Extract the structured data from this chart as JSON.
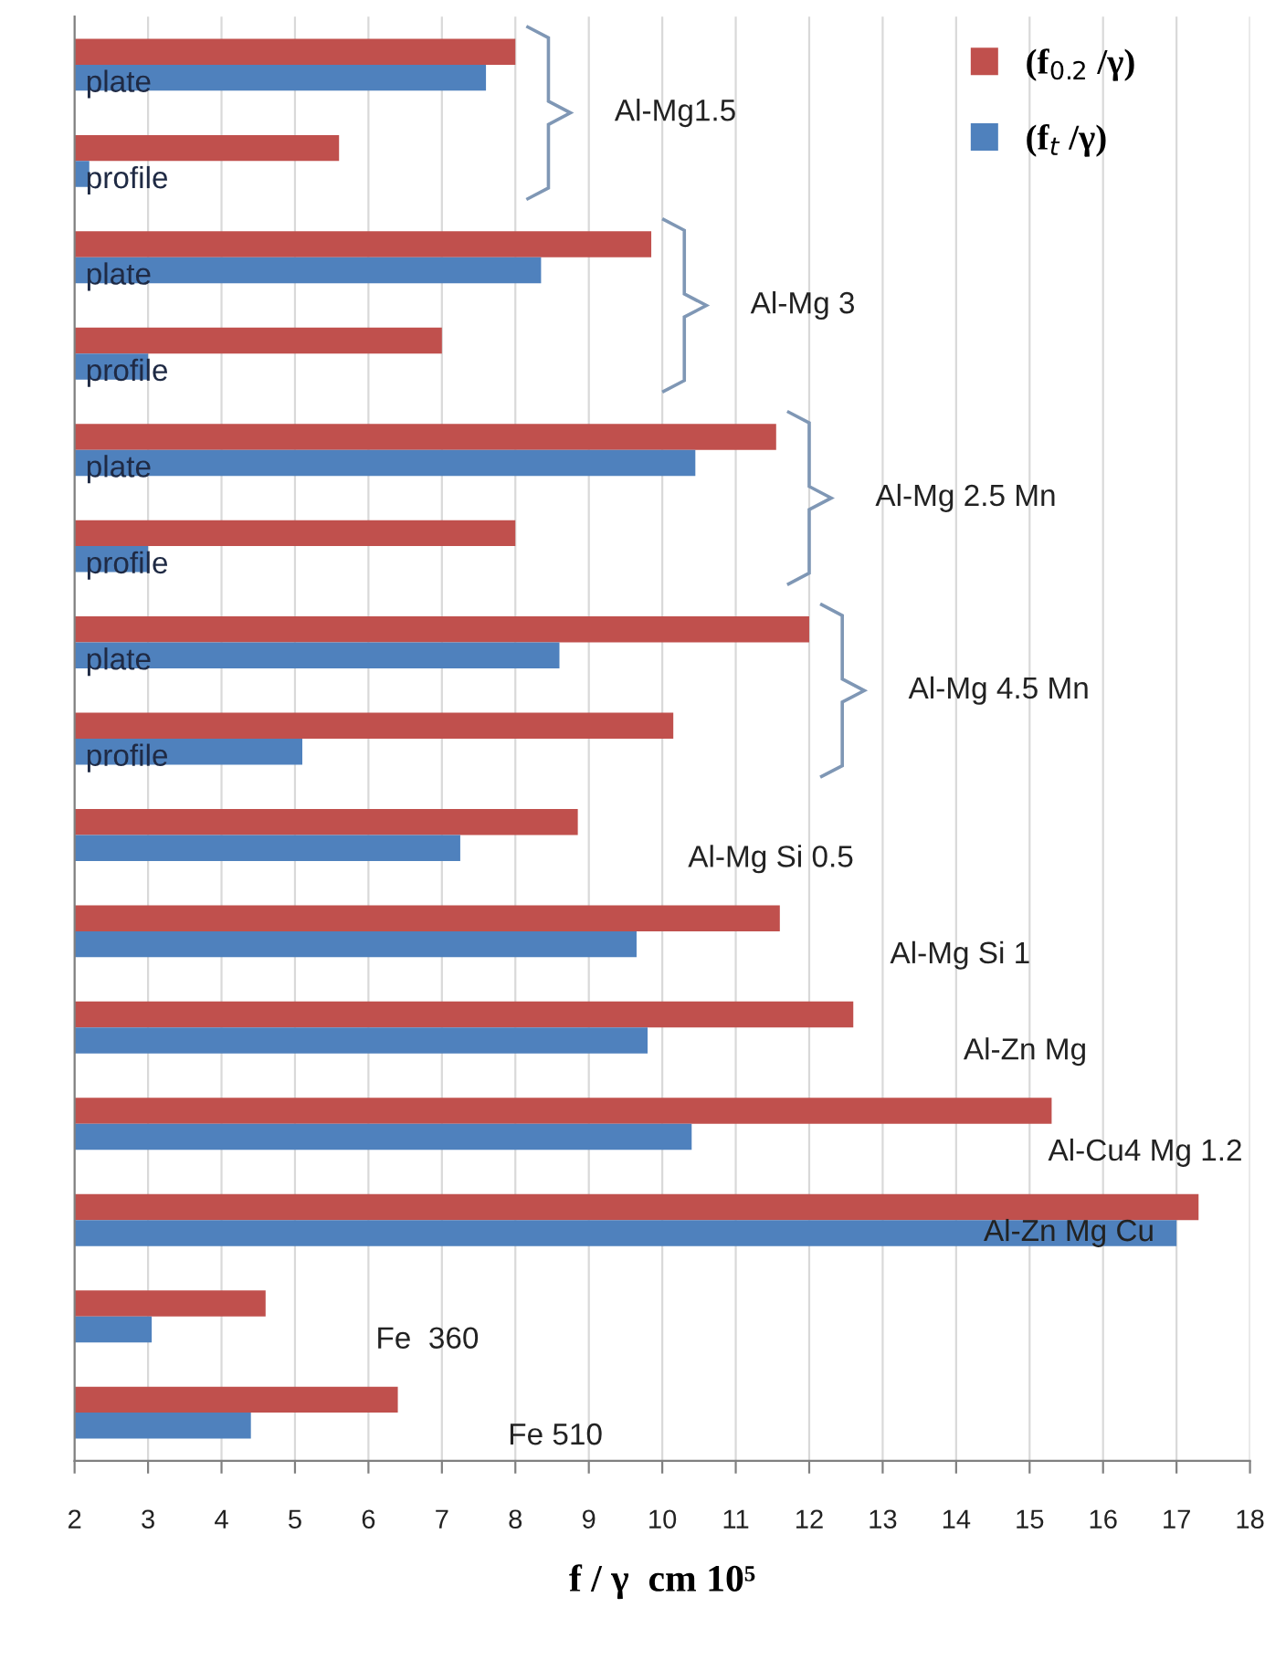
{
  "chart_data": {
    "type": "bar",
    "orientation": "horizontal",
    "categories": [
      "plate",
      "profile",
      "plate",
      "profile",
      "plate",
      "profile",
      "plate",
      "profile",
      "Al-Mg Si 0.5",
      "Al-Mg Si 1",
      "Al-Zn Mg",
      "Al-Cu4 Mg 1.2",
      "Al-Zn Mg Cu",
      "Fe  360",
      "Fe 510"
    ],
    "series": [
      {
        "name": "(f$_{0.2}$ /γ)",
        "color": "#c0504d",
        "values": [
          8.0,
          5.6,
          9.85,
          7.0,
          11.55,
          8.0,
          12.0,
          10.15,
          8.85,
          11.6,
          12.6,
          15.3,
          17.3,
          4.6,
          6.4
        ]
      },
      {
        "name": "(f$_{t}$ /γ)",
        "color": "#4f81bd",
        "values": [
          7.6,
          2.2,
          8.35,
          3.0,
          10.45,
          3.0,
          8.6,
          5.1,
          7.25,
          9.65,
          9.8,
          10.4,
          17.0,
          3.05,
          4.4
        ]
      }
    ],
    "annotations": [
      "Al-Mg1.5",
      "Al-Mg 3",
      "Al-Mg 2.5 Mn",
      "Al-Mg 4.5 Mn"
    ],
    "xlabel": "f / γ  cm 10⁵",
    "xlim": [
      2,
      18
    ],
    "xticks": [
      2,
      3,
      4,
      5,
      6,
      7,
      8,
      9,
      10,
      11,
      12,
      13,
      14,
      15,
      16,
      17,
      18
    ],
    "grid": "x",
    "legend": "top right"
  }
}
